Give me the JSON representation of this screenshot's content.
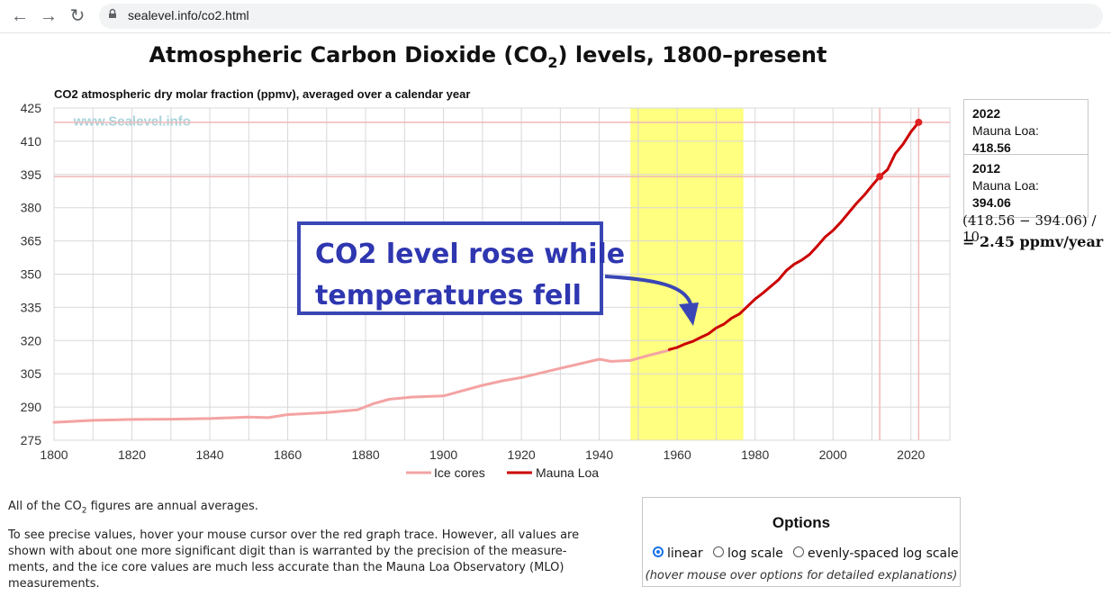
{
  "browser": {
    "url": "sealevel.info/co2.html",
    "back_icon": "←",
    "forward_icon": "→",
    "reload_icon": "↻"
  },
  "page": {
    "title_main": "Atmospheric Carbon Dioxide (CO",
    "title_sub": "2",
    "title_tail": ") levels, 1800–present"
  },
  "chart_data": {
    "type": "line",
    "title": "CO2 atmospheric dry molar fraction (ppmv), averaged over a calendar year",
    "watermark": "www.Sealevel.info",
    "xlim": [
      1800,
      2030
    ],
    "ylim": [
      275,
      425
    ],
    "xticks": [
      1800,
      1820,
      1840,
      1860,
      1880,
      1900,
      1920,
      1940,
      1960,
      1980,
      2000,
      2020
    ],
    "yticks": [
      275,
      290,
      305,
      320,
      335,
      350,
      365,
      380,
      395,
      410,
      425
    ],
    "highlight_band": {
      "x": [
        1948,
        1977
      ],
      "color": "#ffff80"
    },
    "reference_lines": [
      {
        "year": 2012,
        "value": 394.06
      },
      {
        "year": 2022,
        "value": 418.56
      }
    ],
    "series": [
      {
        "name": "Ice cores",
        "color": "#f4a3a3",
        "x": [
          1800,
          1810,
          1820,
          1830,
          1840,
          1850,
          1855,
          1860,
          1870,
          1878,
          1882,
          1886,
          1892,
          1900,
          1910,
          1915,
          1920,
          1930,
          1940,
          1943,
          1948,
          1952,
          1958
        ],
        "y": [
          283.1,
          284,
          284.4,
          284.5,
          284.8,
          285.5,
          285.2,
          286.6,
          287.5,
          288.8,
          291.5,
          293.5,
          294.5,
          295,
          299.8,
          301.8,
          303.3,
          307.5,
          311.6,
          310.6,
          311,
          313,
          315.7
        ]
      },
      {
        "name": "Mauna Loa",
        "color": "#cc0000",
        "x": [
          1958,
          1960,
          1962,
          1964,
          1966,
          1968,
          1970,
          1972,
          1974,
          1976,
          1978,
          1980,
          1982,
          1984,
          1986,
          1988,
          1990,
          1992,
          1994,
          1996,
          1998,
          2000,
          2002,
          2004,
          2006,
          2008,
          2010,
          2012,
          2014,
          2016,
          2018,
          2020,
          2022
        ],
        "y": [
          315.98,
          316.91,
          318.45,
          319.62,
          321.38,
          323.05,
          325.68,
          327.45,
          330.18,
          332.04,
          335.41,
          338.75,
          341.44,
          344.42,
          347.42,
          351.57,
          354.45,
          356.38,
          358.96,
          362.74,
          366.84,
          369.71,
          373.45,
          377.7,
          381.9,
          385.6,
          389.9,
          394.06,
          397.2,
          404.4,
          408.7,
          414.2,
          418.56
        ]
      }
    ]
  },
  "readouts": [
    {
      "year": "2022",
      "label": "Mauna Loa: ",
      "value": "418.56"
    },
    {
      "year": "2012",
      "label": "Mauna Loa: ",
      "value": "394.06"
    }
  ],
  "calc": {
    "line1": "(418.56 − 394.06) / 10",
    "line2": "= 2.45 ppmv/year"
  },
  "annotation": {
    "line1": "CO2 level rose while",
    "line2": "temperatures fell"
  },
  "legend": {
    "ice": "Ice cores",
    "mlo": "Mauna Loa"
  },
  "text": {
    "p1a": "All of the CO",
    "p1sub": "2",
    "p1b": " figures are annual averages.",
    "p2_l1": "To see precise values, hover your mouse cursor over the red graph trace. However, all values are",
    "p2_l2": "shown with about one more significant digit than is warranted by the precision of the measure-",
    "p2_l3": "ments, and the ice core values are much less accurate than the Mauna Loa Observatory (MLO)",
    "p2_l4": "measurements."
  },
  "options": {
    "title": "Options",
    "linear": "linear",
    "log": "log scale",
    "evenlog": "evenly-spaced log scale",
    "hint": "(hover mouse over options for detailed explanations)"
  }
}
